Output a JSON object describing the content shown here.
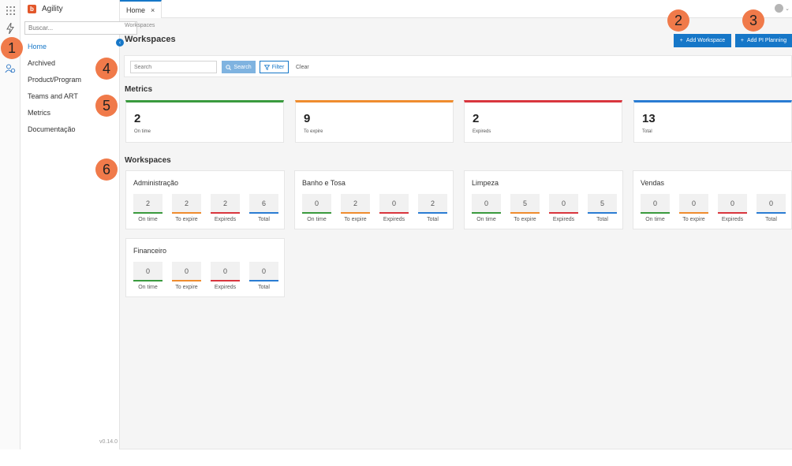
{
  "colors": {
    "accent": "#1677c8",
    "on_time": "#3a9a3e",
    "to_expire": "#ef8c2e",
    "expireds": "#d9363e",
    "total": "#2a7cd3",
    "marker": "#f07a4a"
  },
  "rail": {
    "icons": [
      "apps-grid-icon",
      "bolt-icon",
      "users-settings-icon"
    ]
  },
  "brand": {
    "name": "Agility",
    "logo_letter": "b"
  },
  "nav": {
    "search_placeholder": "Buscar...",
    "items": [
      {
        "label": "Home",
        "active": true
      },
      {
        "label": "Archived",
        "active": false
      },
      {
        "label": "Product/Program",
        "active": false
      },
      {
        "label": "Teams and ART",
        "active": false
      },
      {
        "label": "Metrics",
        "active": false
      },
      {
        "label": "Documentação",
        "active": false
      }
    ],
    "version": "v0.14.0"
  },
  "tabs": [
    {
      "label": "Home",
      "close": "×"
    }
  ],
  "header": {
    "breadcrumb": "Workspaces",
    "title": "Workspaces",
    "add_workspace_label": "Add Workspace",
    "add_pi_label": "Add PI Planning",
    "plus": "+"
  },
  "filter": {
    "search_placeholder": "Search",
    "search_label": "Search",
    "filter_label": "Filter",
    "clear_label": "Clear"
  },
  "metrics": {
    "title": "Metrics",
    "cards": [
      {
        "value": "2",
        "label": "On time",
        "color": "#3a9a3e"
      },
      {
        "value": "9",
        "label": "To expire",
        "color": "#ef8c2e"
      },
      {
        "value": "2",
        "label": "Expireds",
        "color": "#d9363e"
      },
      {
        "value": "13",
        "label": "Total",
        "color": "#2a7cd3"
      }
    ]
  },
  "workspaces": {
    "title": "Workspaces",
    "stat_labels": [
      "On time",
      "To expire",
      "Expireds",
      "Total"
    ],
    "items": [
      {
        "name": "Administração",
        "values": [
          "2",
          "2",
          "2",
          "6"
        ]
      },
      {
        "name": "Banho e Tosa",
        "values": [
          "0",
          "2",
          "0",
          "2"
        ]
      },
      {
        "name": "Limpeza",
        "values": [
          "0",
          "5",
          "0",
          "5"
        ]
      },
      {
        "name": "Vendas",
        "values": [
          "0",
          "0",
          "0",
          "0"
        ]
      },
      {
        "name": "Financeiro",
        "values": [
          "0",
          "0",
          "0",
          "0"
        ]
      }
    ]
  },
  "markers": [
    "1",
    "2",
    "3",
    "4",
    "5",
    "6"
  ]
}
